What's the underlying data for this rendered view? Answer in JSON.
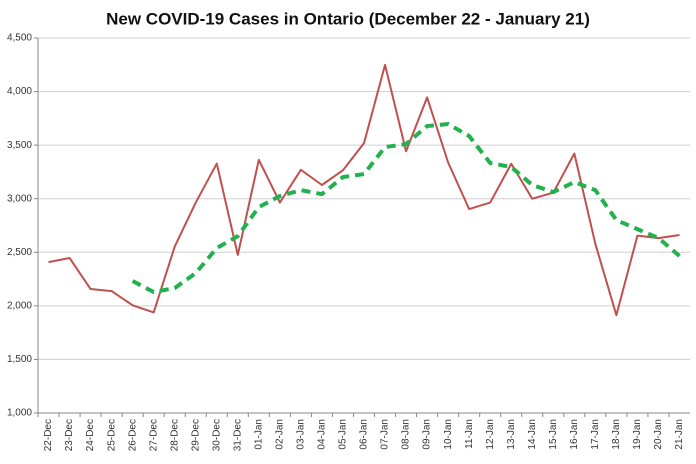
{
  "chart_data": {
    "type": "line",
    "title": "New COVID-19 Cases in Ontario (December 22 - January 21)",
    "categories": [
      "22-Dec",
      "23-Dec",
      "24-Dec",
      "25-Dec",
      "26-Dec",
      "27-Dec",
      "28-Dec",
      "29-Dec",
      "30-Dec",
      "31-Dec",
      "01-Jan",
      "02-Jan",
      "03-Jan",
      "04-Jan",
      "05-Jan",
      "06-Jan",
      "07-Jan",
      "08-Jan",
      "09-Jan",
      "10-Jan",
      "11-Jan",
      "12-Jan",
      "13-Jan",
      "14-Jan",
      "15-Jan",
      "16-Jan",
      "17-Jan",
      "18-Jan",
      "19-Jan",
      "20-Jan",
      "21-Jan"
    ],
    "series": [
      {
        "color": "#c0504d",
        "style": "solid",
        "values": [
          2408,
          2447,
          2157,
          2138,
          2005,
          1939,
          2553,
          2964,
          3328,
          2476,
          3363,
          2964,
          3270,
          3128,
          3266,
          3519,
          4249,
          3443,
          3945,
          3338,
          2903,
          2964,
          3326,
          3000,
          3056,
          3422,
          2578,
          1913,
          2655,
          2632,
          2661
        ]
      },
      {
        "color": "#22b14c",
        "style": "dashed",
        "values": [
          null,
          null,
          null,
          null,
          2232,
          2129,
          2166,
          2306,
          2540,
          2651,
          2922,
          3025,
          3080,
          3043,
          3202,
          3230,
          3482,
          3510,
          3678,
          3697,
          3585,
          3333,
          3296,
          3128,
          3062,
          3155,
          3080,
          2800,
          2716,
          2633,
          2465
        ]
      }
    ],
    "ylim": [
      1000,
      4500
    ],
    "yticks": [
      {
        "value": 1000,
        "label": "1,000"
      },
      {
        "value": 1500,
        "label": "1,500"
      },
      {
        "value": 2000,
        "label": "2,000"
      },
      {
        "value": 2500,
        "label": "2,500"
      },
      {
        "value": 3000,
        "label": "3,000"
      },
      {
        "value": 3500,
        "label": "3,500"
      },
      {
        "value": 4000,
        "label": "4,000"
      },
      {
        "value": 4500,
        "label": "4,500"
      }
    ],
    "grid": true
  }
}
